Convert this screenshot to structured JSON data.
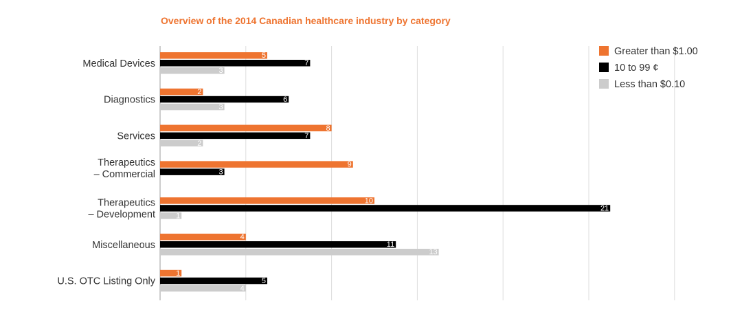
{
  "chart_data": {
    "type": "bar",
    "orientation": "horizontal",
    "title": "Overview of the 2014 Canadian healthcare industry by category",
    "categories": [
      [
        "Medical Devices"
      ],
      [
        "Diagnostics"
      ],
      [
        "Services"
      ],
      [
        "Therapeutics",
        "– Commercial"
      ],
      [
        "Therapeutics",
        "– Development"
      ],
      [
        "Miscellaneous"
      ],
      [
        "U.S. OTC Listing Only"
      ]
    ],
    "series": [
      {
        "name": "Greater than $1.00",
        "color": "#ee7430",
        "values": [
          5,
          2,
          8,
          9,
          10,
          4,
          1
        ]
      },
      {
        "name": "10 to 99 ¢",
        "color": "#000000",
        "values": [
          7,
          6,
          7,
          3,
          21,
          11,
          5
        ]
      },
      {
        "name": "Less than $0.10",
        "color": "#cccccc",
        "values": [
          3,
          3,
          2,
          null,
          1,
          13,
          4
        ]
      }
    ],
    "xlim": [
      0,
      25
    ],
    "x_grid_step": 4,
    "grid": true,
    "legend": "top-right",
    "colors": {
      "title": "#ee7430",
      "grid": "#dddddd",
      "axis": "#999999"
    }
  }
}
